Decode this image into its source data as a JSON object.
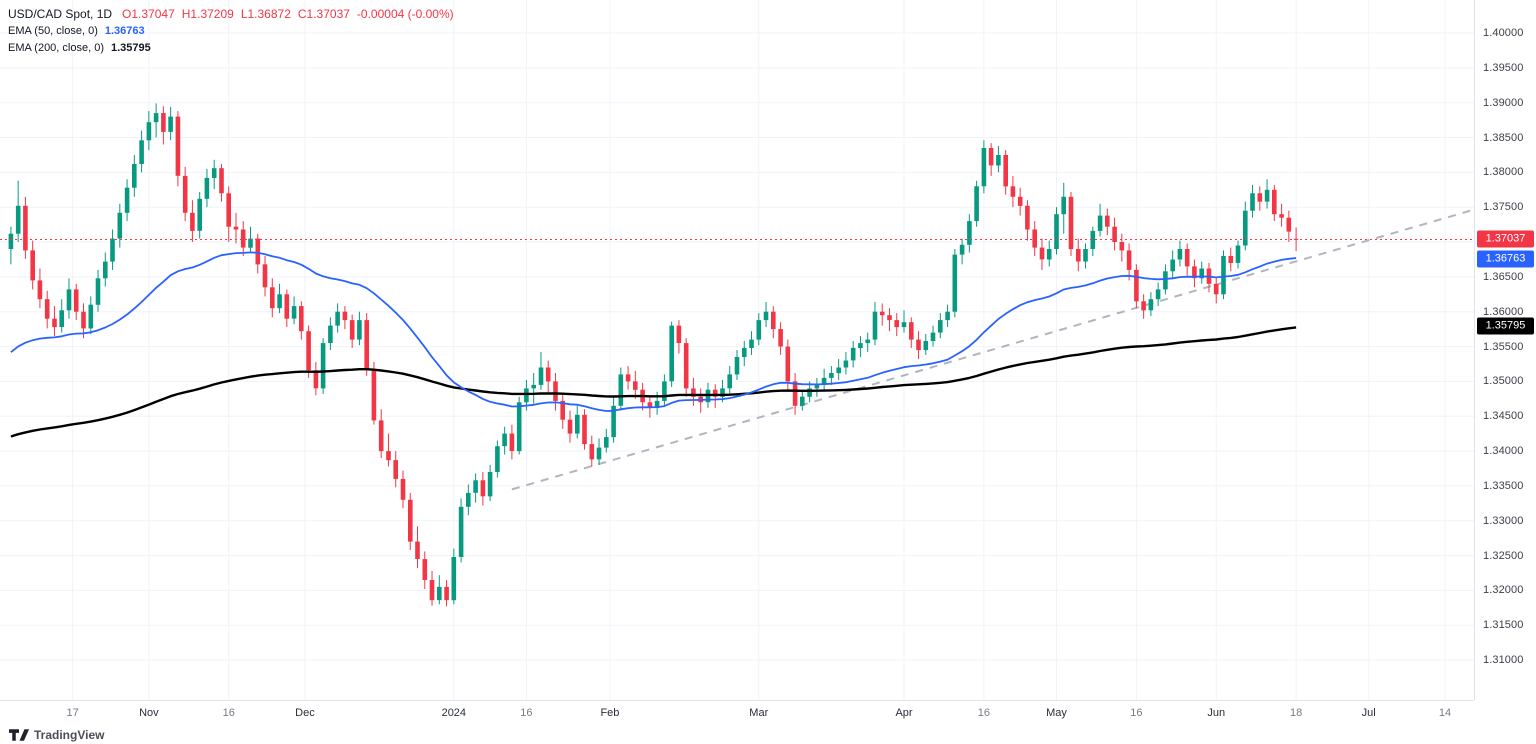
{
  "legend": {
    "symbol": "USD/CAD Spot, 1D",
    "ohlc": [
      "O1.37047",
      "H1.37209",
      "L1.36872",
      "C1.37037",
      "-0.00004 (-0.00%)"
    ],
    "ema50": {
      "name": "EMA (50, close, 0)",
      "value": "1.36763"
    },
    "ema200": {
      "name": "EMA (200, close, 0)",
      "value": "1.35795"
    }
  },
  "colors": {
    "up": "#089981",
    "down": "#f23645",
    "ema50": "#2962ff",
    "ema200": "#000000",
    "last_price": "#f23645",
    "trend": "#b2b5be",
    "grid": "#f0f3fa",
    "axis_text": "#3c4049"
  },
  "price_axis": {
    "ticks": [
      "1.40000",
      "1.39500",
      "1.39000",
      "1.38500",
      "1.38000",
      "1.37500",
      "1.37000",
      "1.36500",
      "1.36000",
      "1.35500",
      "1.35000",
      "1.34500",
      "1.34000",
      "1.33500",
      "1.33000",
      "1.32500",
      "1.32000",
      "1.31500",
      "1.31000"
    ],
    "badges": [
      {
        "name": "last-price-badge",
        "text": "1.37037",
        "color": "#f23645"
      },
      {
        "name": "ema50-value-badge",
        "text": "1.36763",
        "color": "#2962ff"
      },
      {
        "name": "ema200-value-badge",
        "text": "1.35795",
        "color": "#000000"
      }
    ]
  },
  "time_axis": {
    "ticks": [
      {
        "label": "17",
        "slot": 9.5,
        "major": false
      },
      {
        "label": "Nov",
        "slot": 20,
        "major": true
      },
      {
        "label": "16",
        "slot": 31,
        "major": false
      },
      {
        "label": "Dec",
        "slot": 41.5,
        "major": true
      },
      {
        "label": "2024",
        "slot": 62,
        "major": true
      },
      {
        "label": "16",
        "slot": 72,
        "major": false
      },
      {
        "label": "Feb",
        "slot": 83.5,
        "major": true
      },
      {
        "label": "Mar",
        "slot": 104,
        "major": true
      },
      {
        "label": "Apr",
        "slot": 124,
        "major": true
      },
      {
        "label": "16",
        "slot": 135,
        "major": false
      },
      {
        "label": "May",
        "slot": 145,
        "major": true
      },
      {
        "label": "16",
        "slot": 156,
        "major": false
      },
      {
        "label": "Jun",
        "slot": 167,
        "major": true
      },
      {
        "label": "18",
        "slot": 178,
        "major": false
      },
      {
        "label": "Jul",
        "slot": 188,
        "major": true
      },
      {
        "label": "14",
        "slot": 198.5,
        "major": false
      }
    ]
  },
  "footer": {
    "brand": "TradingView"
  },
  "chart_data": {
    "type": "candlestick",
    "title": "USD/CAD Spot, 1D",
    "symbol": "USD/CAD",
    "timeframe": "1D",
    "last_price": 1.37037,
    "last_ohlc": {
      "open": 1.37047,
      "high": 1.37209,
      "low": 1.36872,
      "close": 1.37037,
      "change": -4e-05,
      "change_pct": "-0.00%"
    },
    "price_domain": [
      1.30427,
      1.40474
    ],
    "axis_ticks_step": 0.005,
    "slots": 203,
    "x_range": "Oct 2023 - Jul 2024 (daily)",
    "candles": [
      [
        1.369,
        1.3722,
        1.3668,
        1.3712
      ],
      [
        1.3712,
        1.3788,
        1.37,
        1.3752
      ],
      [
        1.3752,
        1.3765,
        1.3676,
        1.3688
      ],
      [
        1.3688,
        1.3702,
        1.3632,
        1.3645
      ],
      [
        1.3645,
        1.3662,
        1.3605,
        1.3618
      ],
      [
        1.3618,
        1.363,
        1.3576,
        1.359
      ],
      [
        1.359,
        1.3608,
        1.3565,
        1.3578
      ],
      [
        1.3578,
        1.3618,
        1.357,
        1.3602
      ],
      [
        1.3602,
        1.3648,
        1.359,
        1.3632
      ],
      [
        1.3632,
        1.364,
        1.3588,
        1.36
      ],
      [
        1.36,
        1.3612,
        1.3562,
        1.3576
      ],
      [
        1.3576,
        1.3622,
        1.3568,
        1.361
      ],
      [
        1.361,
        1.366,
        1.36,
        1.3648
      ],
      [
        1.3648,
        1.3685,
        1.3636,
        1.3672
      ],
      [
        1.3672,
        1.3718,
        1.366,
        1.3705
      ],
      [
        1.3705,
        1.3755,
        1.3692,
        1.3742
      ],
      [
        1.3742,
        1.379,
        1.373,
        1.3778
      ],
      [
        1.3778,
        1.3825,
        1.3765,
        1.3812
      ],
      [
        1.3812,
        1.386,
        1.38,
        1.3846
      ],
      [
        1.3846,
        1.3888,
        1.3832,
        1.3872
      ],
      [
        1.3872,
        1.3899,
        1.385,
        1.3885
      ],
      [
        1.3885,
        1.3895,
        1.384,
        1.3858
      ],
      [
        1.3858,
        1.3894,
        1.3846,
        1.388
      ],
      [
        1.388,
        1.3888,
        1.378,
        1.3795
      ],
      [
        1.3795,
        1.3808,
        1.373,
        1.3742
      ],
      [
        1.3742,
        1.376,
        1.37,
        1.3716
      ],
      [
        1.3716,
        1.3772,
        1.3705,
        1.3762
      ],
      [
        1.3762,
        1.3805,
        1.375,
        1.3792
      ],
      [
        1.3792,
        1.3818,
        1.3776,
        1.3806
      ],
      [
        1.3806,
        1.3812,
        1.3758,
        1.377
      ],
      [
        1.377,
        1.378,
        1.37,
        1.3722
      ],
      [
        1.3722,
        1.3742,
        1.3698,
        1.3718
      ],
      [
        1.3718,
        1.373,
        1.368,
        1.3692
      ],
      [
        1.3692,
        1.3722,
        1.3685,
        1.3705
      ],
      [
        1.3705,
        1.3712,
        1.3655,
        1.3668
      ],
      [
        1.3668,
        1.368,
        1.3622,
        1.3635
      ],
      [
        1.3635,
        1.3648,
        1.3592,
        1.3605
      ],
      [
        1.3605,
        1.364,
        1.3598,
        1.3625
      ],
      [
        1.3625,
        1.3632,
        1.3578,
        1.359
      ],
      [
        1.359,
        1.3622,
        1.3582,
        1.3608
      ],
      [
        1.3608,
        1.3615,
        1.356,
        1.3572
      ],
      [
        1.3572,
        1.358,
        1.3505,
        1.3516
      ],
      [
        1.3516,
        1.3528,
        1.348,
        1.349
      ],
      [
        1.349,
        1.3562,
        1.3482,
        1.3555
      ],
      [
        1.3555,
        1.3592,
        1.3545,
        1.358
      ],
      [
        1.358,
        1.3612,
        1.357,
        1.36
      ],
      [
        1.36,
        1.3608,
        1.3575,
        1.3588
      ],
      [
        1.3588,
        1.3596,
        1.3548,
        1.356
      ],
      [
        1.356,
        1.36,
        1.3552,
        1.3588
      ],
      [
        1.3588,
        1.3598,
        1.3508,
        1.3517
      ],
      [
        1.3517,
        1.3528,
        1.3438,
        1.3444
      ],
      [
        1.3444,
        1.346,
        1.339,
        1.34
      ],
      [
        1.34,
        1.3425,
        1.3378,
        1.3387
      ],
      [
        1.3387,
        1.34,
        1.3348,
        1.336
      ],
      [
        1.336,
        1.3372,
        1.3318,
        1.333
      ],
      [
        1.333,
        1.334,
        1.3258,
        1.327
      ],
      [
        1.327,
        1.3292,
        1.3232,
        1.3245
      ],
      [
        1.3245,
        1.3256,
        1.3202,
        1.3215
      ],
      [
        1.3215,
        1.3228,
        1.3178,
        1.3186
      ],
      [
        1.3186,
        1.3222,
        1.318,
        1.3205
      ],
      [
        1.3205,
        1.3215,
        1.3177,
        1.3186
      ],
      [
        1.3186,
        1.326,
        1.318,
        1.3248
      ],
      [
        1.3248,
        1.3332,
        1.324,
        1.332
      ],
      [
        1.332,
        1.3352,
        1.3308,
        1.334
      ],
      [
        1.334,
        1.3368,
        1.3326,
        1.3358
      ],
      [
        1.3358,
        1.337,
        1.3322,
        1.3335
      ],
      [
        1.3335,
        1.338,
        1.3328,
        1.337
      ],
      [
        1.337,
        1.3415,
        1.3362,
        1.3407
      ],
      [
        1.3407,
        1.3435,
        1.3395,
        1.3425
      ],
      [
        1.3425,
        1.3438,
        1.3388,
        1.34
      ],
      [
        1.34,
        1.3478,
        1.3395,
        1.347
      ],
      [
        1.347,
        1.3502,
        1.3458,
        1.349
      ],
      [
        1.349,
        1.3512,
        1.3468,
        1.3495
      ],
      [
        1.3495,
        1.3542,
        1.3488,
        1.352
      ],
      [
        1.352,
        1.353,
        1.3482,
        1.35
      ],
      [
        1.35,
        1.3512,
        1.3458,
        1.3472
      ],
      [
        1.3472,
        1.3482,
        1.3432,
        1.3445
      ],
      [
        1.3445,
        1.3458,
        1.3412,
        1.3425
      ],
      [
        1.3425,
        1.3465,
        1.3418,
        1.3452
      ],
      [
        1.3452,
        1.346,
        1.3402,
        1.341
      ],
      [
        1.341,
        1.3422,
        1.3378,
        1.3388
      ],
      [
        1.3388,
        1.3418,
        1.338,
        1.3405
      ],
      [
        1.3405,
        1.3432,
        1.3398,
        1.342
      ],
      [
        1.342,
        1.3478,
        1.3412,
        1.3465
      ],
      [
        1.3465,
        1.352,
        1.3458,
        1.351
      ],
      [
        1.351,
        1.3522,
        1.3488,
        1.35
      ],
      [
        1.35,
        1.3515,
        1.3475,
        1.3488
      ],
      [
        1.3488,
        1.3498,
        1.3458,
        1.347
      ],
      [
        1.347,
        1.348,
        1.3448,
        1.3462
      ],
      [
        1.3462,
        1.3485,
        1.3452,
        1.3472
      ],
      [
        1.3472,
        1.351,
        1.3464,
        1.35
      ],
      [
        1.35,
        1.3586,
        1.3492,
        1.358
      ],
      [
        1.358,
        1.3588,
        1.354,
        1.3555
      ],
      [
        1.3555,
        1.3562,
        1.3478,
        1.349
      ],
      [
        1.349,
        1.3505,
        1.3465,
        1.3478
      ],
      [
        1.3478,
        1.349,
        1.3455,
        1.347
      ],
      [
        1.347,
        1.3498,
        1.3462,
        1.3488
      ],
      [
        1.3488,
        1.3496,
        1.3462,
        1.3478
      ],
      [
        1.3478,
        1.3502,
        1.347,
        1.349
      ],
      [
        1.349,
        1.3522,
        1.3482,
        1.351
      ],
      [
        1.351,
        1.3545,
        1.3502,
        1.3535
      ],
      [
        1.3535,
        1.3558,
        1.3522,
        1.3548
      ],
      [
        1.3548,
        1.3572,
        1.3538,
        1.356
      ],
      [
        1.356,
        1.3598,
        1.3552,
        1.3588
      ],
      [
        1.3588,
        1.3614,
        1.3578,
        1.36
      ],
      [
        1.36,
        1.3608,
        1.3562,
        1.3575
      ],
      [
        1.3575,
        1.3585,
        1.3538,
        1.355
      ],
      [
        1.355,
        1.356,
        1.3488,
        1.35
      ],
      [
        1.35,
        1.3512,
        1.3452,
        1.3465
      ],
      [
        1.3465,
        1.3488,
        1.3458,
        1.3478
      ],
      [
        1.3478,
        1.35,
        1.347,
        1.349
      ],
      [
        1.349,
        1.3505,
        1.3478,
        1.3495
      ],
      [
        1.3495,
        1.3518,
        1.3486,
        1.3505
      ],
      [
        1.3505,
        1.3522,
        1.3495,
        1.3512
      ],
      [
        1.3512,
        1.3532,
        1.3502,
        1.352
      ],
      [
        1.352,
        1.3542,
        1.351,
        1.353
      ],
      [
        1.353,
        1.3558,
        1.352,
        1.3548
      ],
      [
        1.3548,
        1.3565,
        1.3535,
        1.3555
      ],
      [
        1.3555,
        1.357,
        1.3542,
        1.356
      ],
      [
        1.356,
        1.3614,
        1.3552,
        1.36
      ],
      [
        1.36,
        1.3612,
        1.358,
        1.3595
      ],
      [
        1.3595,
        1.3605,
        1.3572,
        1.3588
      ],
      [
        1.3588,
        1.3598,
        1.3565,
        1.3578
      ],
      [
        1.3578,
        1.3602,
        1.357,
        1.3585
      ],
      [
        1.3585,
        1.3592,
        1.3548,
        1.356
      ],
      [
        1.356,
        1.3572,
        1.3532,
        1.3545
      ],
      [
        1.3545,
        1.3568,
        1.3538,
        1.3558
      ],
      [
        1.3558,
        1.358,
        1.355,
        1.357
      ],
      [
        1.357,
        1.3598,
        1.3562,
        1.3588
      ],
      [
        1.3588,
        1.361,
        1.3578,
        1.36
      ],
      [
        1.36,
        1.369,
        1.3592,
        1.3682
      ],
      [
        1.3682,
        1.3705,
        1.3668,
        1.3696
      ],
      [
        1.3696,
        1.374,
        1.3685,
        1.373
      ],
      [
        1.373,
        1.3788,
        1.3722,
        1.378
      ],
      [
        1.378,
        1.3846,
        1.377,
        1.3835
      ],
      [
        1.3835,
        1.3842,
        1.3795,
        1.381
      ],
      [
        1.381,
        1.3838,
        1.38,
        1.3825
      ],
      [
        1.3825,
        1.3832,
        1.3768,
        1.378
      ],
      [
        1.378,
        1.3795,
        1.375,
        1.3765
      ],
      [
        1.3765,
        1.3778,
        1.3738,
        1.3752
      ],
      [
        1.3752,
        1.376,
        1.3702,
        1.3718
      ],
      [
        1.3718,
        1.373,
        1.368,
        1.3692
      ],
      [
        1.3692,
        1.3705,
        1.366,
        1.3675
      ],
      [
        1.3675,
        1.3702,
        1.3665,
        1.369
      ],
      [
        1.369,
        1.375,
        1.3682,
        1.374
      ],
      [
        1.374,
        1.3785,
        1.3712,
        1.3765
      ],
      [
        1.3765,
        1.3772,
        1.368,
        1.369
      ],
      [
        1.369,
        1.3705,
        1.3658,
        1.3672
      ],
      [
        1.3672,
        1.3698,
        1.3662,
        1.369
      ],
      [
        1.369,
        1.3722,
        1.368,
        1.3716
      ],
      [
        1.3716,
        1.3755,
        1.3708,
        1.3738
      ],
      [
        1.3738,
        1.3748,
        1.371,
        1.3722
      ],
      [
        1.3722,
        1.3735,
        1.3688,
        1.37
      ],
      [
        1.37,
        1.3712,
        1.3672,
        1.3688
      ],
      [
        1.3688,
        1.3698,
        1.3645,
        1.366
      ],
      [
        1.366,
        1.3668,
        1.3605,
        1.3615
      ],
      [
        1.3615,
        1.3625,
        1.359,
        1.3602
      ],
      [
        1.3602,
        1.3628,
        1.3594,
        1.3618
      ],
      [
        1.3618,
        1.3642,
        1.3608,
        1.3632
      ],
      [
        1.3632,
        1.3668,
        1.3625,
        1.3658
      ],
      [
        1.3658,
        1.3688,
        1.3648,
        1.3675
      ],
      [
        1.3675,
        1.3702,
        1.3665,
        1.369
      ],
      [
        1.369,
        1.3698,
        1.3652,
        1.3665
      ],
      [
        1.3665,
        1.3675,
        1.3635,
        1.3648
      ],
      [
        1.3648,
        1.3672,
        1.364,
        1.3662
      ],
      [
        1.3662,
        1.367,
        1.3628,
        1.364
      ],
      [
        1.364,
        1.365,
        1.3612,
        1.3625
      ],
      [
        1.3625,
        1.3688,
        1.3618,
        1.368
      ],
      [
        1.368,
        1.3692,
        1.3658,
        1.367
      ],
      [
        1.367,
        1.3702,
        1.3662,
        1.3695
      ],
      [
        1.3695,
        1.3758,
        1.3688,
        1.3745
      ],
      [
        1.3745,
        1.3782,
        1.3735,
        1.377
      ],
      [
        1.377,
        1.378,
        1.3745,
        1.3758
      ],
      [
        1.3758,
        1.379,
        1.3748,
        1.3775
      ],
      [
        1.3775,
        1.3782,
        1.373,
        1.374
      ],
      [
        1.374,
        1.3755,
        1.3722,
        1.3735
      ],
      [
        1.3735,
        1.3745,
        1.37,
        1.3715
      ],
      [
        1.37047,
        1.37209,
        1.36872,
        1.37037
      ]
    ],
    "overlays": {
      "ema50": {
        "period": 50,
        "seed": 1.3535,
        "last": 1.36763,
        "color": "#2962ff"
      },
      "ema200": {
        "period": 200,
        "seed": 1.3418,
        "last": 1.35795,
        "color": "#000000"
      },
      "trendline": {
        "style": "dashed",
        "from_slot": 70,
        "from_price": 1.3345,
        "to_slot": 202,
        "to_price": 1.3745
      }
    },
    "grid": true,
    "legend_position": "top-left"
  }
}
